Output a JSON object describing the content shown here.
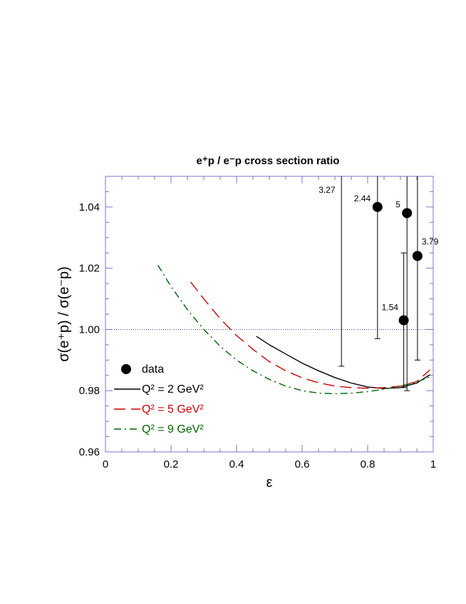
{
  "chart_data": {
    "type": "line",
    "title": "e⁺p / e⁻p cross section ratio",
    "xlabel": "ε",
    "ylabel": "σ(e⁺p) / σ(e⁻p)",
    "xlim": [
      0,
      1
    ],
    "ylim": [
      0.96,
      1.05
    ],
    "xticks": [
      "0",
      "0.2",
      "0.4",
      "0.6",
      "0.8",
      "1"
    ],
    "yticks": [
      "0.96",
      "0.98",
      "1.00",
      "1.02",
      "1.04"
    ],
    "reference_line": 1.0,
    "grid": false,
    "legend_position": "bottom-left",
    "data_points": [
      {
        "label": "3.27",
        "x": 0.72,
        "y": 1.05,
        "yerr_low": 0.988,
        "yerr_high": 1.05
      },
      {
        "label": "2.44",
        "x": 0.83,
        "y": 1.04,
        "yerr_low": 0.997,
        "yerr_high": 1.05
      },
      {
        "label": "5",
        "x": 0.92,
        "y": 1.038,
        "yerr_low": 0.98,
        "yerr_high": 1.05
      },
      {
        "label": "3.79",
        "x": 0.952,
        "y": 1.024,
        "yerr_low": 0.99,
        "yerr_high": 1.05
      },
      {
        "label": "1.54",
        "x": 0.91,
        "y": 1.003,
        "yerr_low": 0.981,
        "yerr_high": 1.025
      }
    ],
    "legend": [
      {
        "text": "data",
        "symbol": "dot"
      },
      {
        "text": "Q² = 2 GeV²",
        "style": "solid",
        "color": "#000000"
      },
      {
        "text": "Q² = 5 GeV²",
        "style": "dashed",
        "color": "#cc0000"
      },
      {
        "text": "Q² = 9 GeV²",
        "style": "dashdot",
        "color": "#006400"
      }
    ],
    "series": [
      {
        "name": "Q² = 2 GeV²",
        "style": "solid",
        "color": "#000000",
        "x": [
          0.46,
          0.5,
          0.55,
          0.6,
          0.65,
          0.7,
          0.75,
          0.8,
          0.85,
          0.9,
          0.95,
          0.99
        ],
        "y": [
          0.9978,
          0.995,
          0.992,
          0.989,
          0.9865,
          0.9843,
          0.9825,
          0.9812,
          0.9807,
          0.981,
          0.9825,
          0.9852
        ]
      },
      {
        "name": "Q² = 5 GeV²",
        "style": "dashed",
        "color": "#cc0000",
        "x": [
          0.26,
          0.3,
          0.35,
          0.4,
          0.45,
          0.5,
          0.55,
          0.6,
          0.65,
          0.7,
          0.75,
          0.8,
          0.85,
          0.9,
          0.95,
          0.99
        ],
        "y": [
          1.0155,
          1.01,
          1.0035,
          0.998,
          0.9935,
          0.9895,
          0.9865,
          0.9842,
          0.9826,
          0.9815,
          0.981,
          0.9808,
          0.981,
          0.9815,
          0.983,
          0.9868
        ]
      },
      {
        "name": "Q² = 9 GeV²",
        "style": "dashdot",
        "color": "#006400",
        "x": [
          0.16,
          0.2,
          0.25,
          0.3,
          0.35,
          0.4,
          0.45,
          0.5,
          0.55,
          0.6,
          0.65,
          0.7,
          0.75,
          0.8,
          0.85,
          0.9,
          0.95,
          0.99
        ],
        "y": [
          1.021,
          1.014,
          1.0065,
          1.0,
          0.9945,
          0.99,
          0.9865,
          0.9837,
          0.9815,
          0.98,
          0.9792,
          0.979,
          0.9792,
          0.9797,
          0.9805,
          0.9815,
          0.9828,
          0.9845
        ]
      }
    ]
  }
}
